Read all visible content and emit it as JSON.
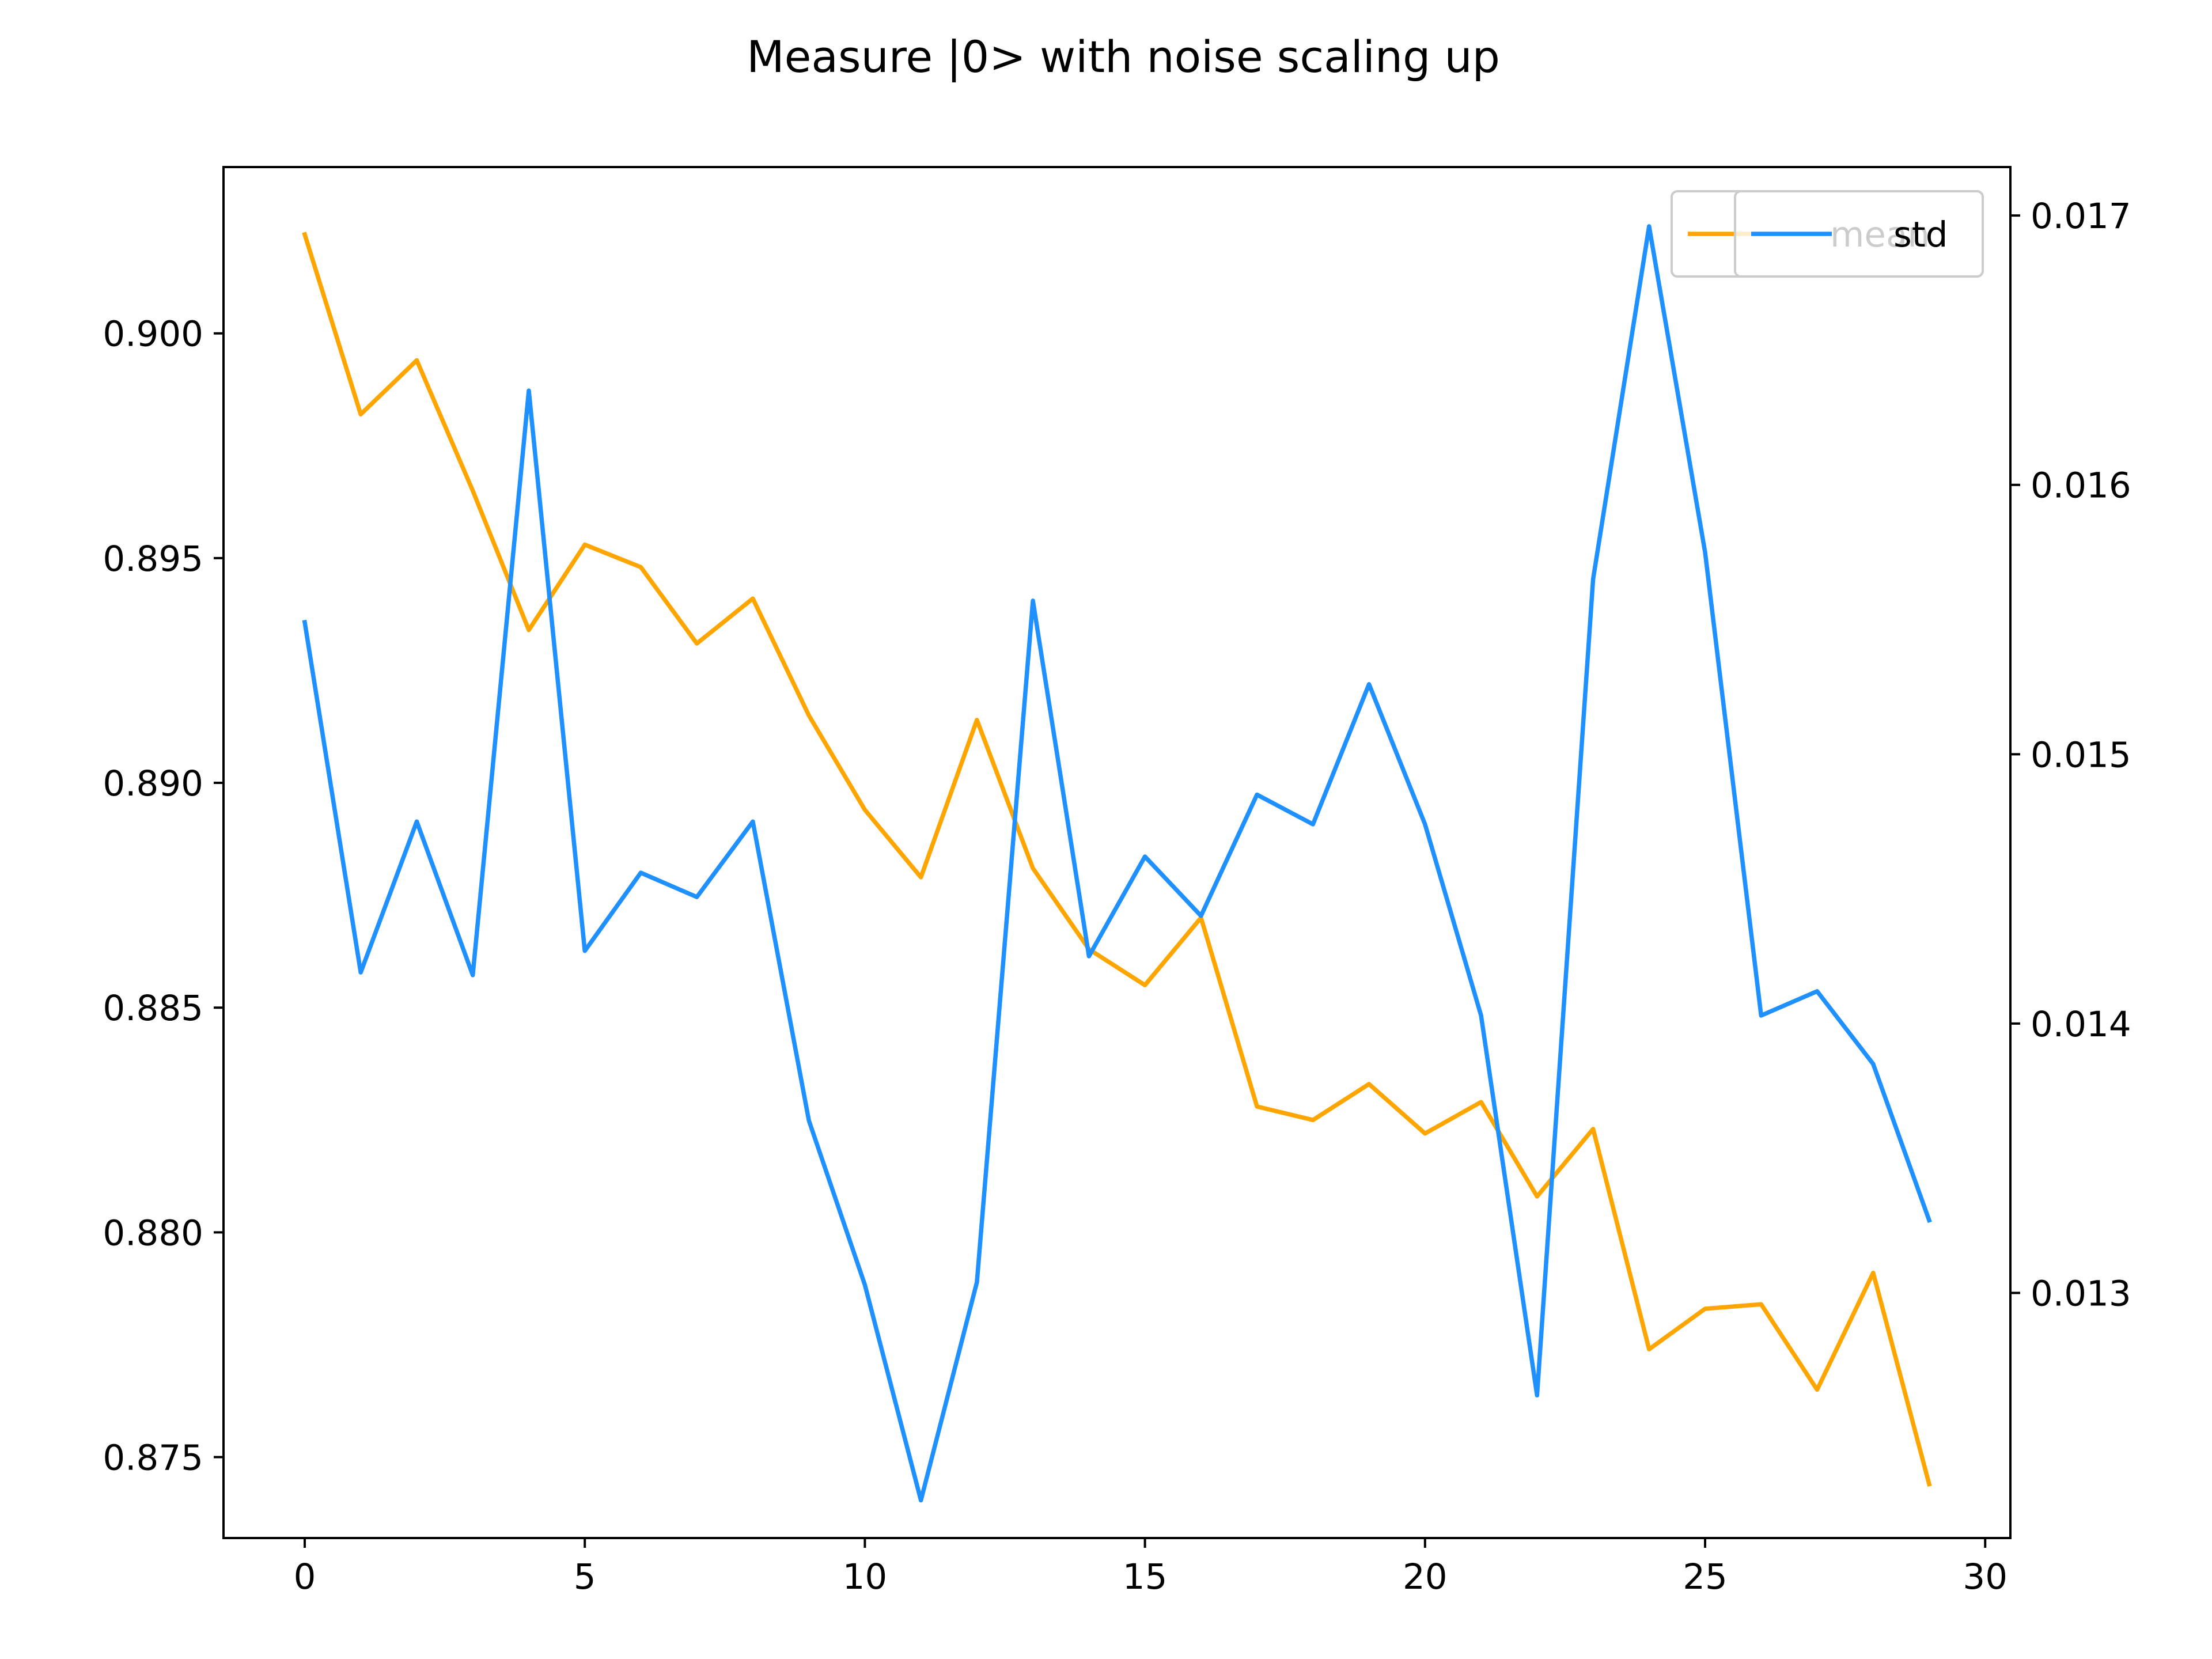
{
  "chart_data": {
    "type": "line",
    "title": "Measure |0> with noise scaling up",
    "xlabel": "",
    "ylabel": "",
    "xlim": [
      -1.45,
      30.45
    ],
    "xticks": [
      0,
      5,
      10,
      15,
      20,
      25,
      30
    ],
    "grid": false,
    "x": [
      0,
      1,
      2,
      3,
      4,
      5,
      6,
      7,
      8,
      9,
      10,
      11,
      12,
      13,
      14,
      15,
      16,
      17,
      18,
      19,
      20,
      21,
      22,
      23,
      24,
      25,
      26,
      27,
      28,
      29
    ],
    "axes": {
      "left": {
        "ylim": [
          0.8732,
          0.9037
        ],
        "yticks": [
          0.875,
          0.88,
          0.885,
          0.89,
          0.895,
          0.9
        ],
        "tick_format": 3
      },
      "right": {
        "ylim": [
          0.01209,
          0.01718
        ],
        "yticks": [
          0.013,
          0.014,
          0.015,
          0.016,
          0.017
        ],
        "tick_format": 3
      }
    },
    "series": [
      {
        "name": "mean",
        "axis": "left",
        "color": "#FFA500",
        "values": [
          0.9022,
          0.8982,
          0.8994,
          0.8965,
          0.8934,
          0.8953,
          0.8948,
          0.8931,
          0.8941,
          0.8915,
          0.8894,
          0.8879,
          0.8914,
          0.8881,
          0.8863,
          0.8855,
          0.887,
          0.8828,
          0.8825,
          0.8833,
          0.8822,
          0.8829,
          0.8808,
          0.8823,
          0.8774,
          0.8783,
          0.8784,
          0.8765,
          0.8791,
          0.8744
        ]
      },
      {
        "name": "std",
        "axis": "right",
        "color": "#1E90FF",
        "values": [
          0.01549,
          0.01419,
          0.01475,
          0.01418,
          0.01635,
          0.01427,
          0.01456,
          0.01447,
          0.01475,
          0.01364,
          0.01303,
          0.01223,
          0.01304,
          0.01557,
          0.01425,
          0.01462,
          0.0144,
          0.01485,
          0.01474,
          0.01526,
          0.01474,
          0.01403,
          0.01262,
          0.01565,
          0.01696,
          0.01575,
          0.01403,
          0.01412,
          0.01385,
          0.01327
        ]
      }
    ],
    "legends": [
      {
        "placement": "upper right",
        "series": [
          "mean"
        ]
      },
      {
        "placement": "upper right",
        "series": [
          "std"
        ]
      }
    ]
  }
}
